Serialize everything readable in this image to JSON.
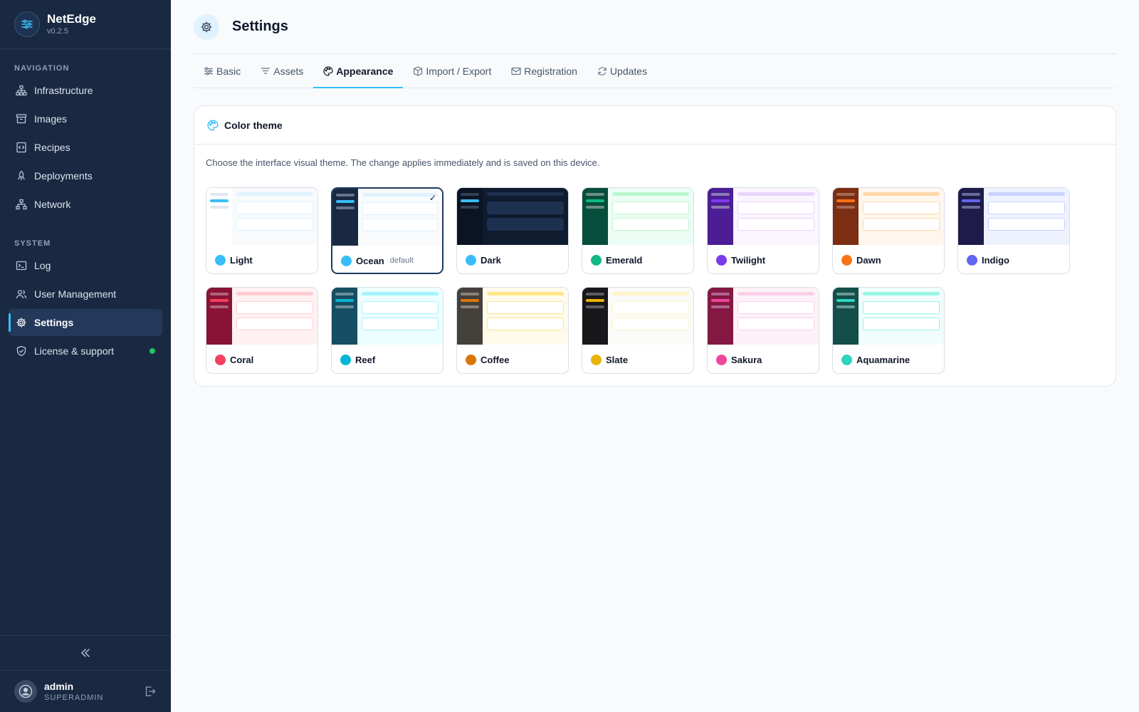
{
  "app": {
    "name": "NetEdge",
    "version": "v0.2.5"
  },
  "sidebar": {
    "navigation_label": "NAVIGATION",
    "system_label": "SYSTEM",
    "nav_items": [
      {
        "label": "Infrastructure",
        "icon": "hierarchy-icon"
      },
      {
        "label": "Images",
        "icon": "archive-box-icon"
      },
      {
        "label": "Recipes",
        "icon": "code-file-icon"
      },
      {
        "label": "Deployments",
        "icon": "rocket-icon"
      },
      {
        "label": "Network",
        "icon": "network-icon"
      }
    ],
    "system_items": [
      {
        "label": "Log",
        "icon": "terminal-icon"
      },
      {
        "label": "User Management",
        "icon": "users-icon"
      },
      {
        "label": "Settings",
        "icon": "gear-icon",
        "active": true
      },
      {
        "label": "License & support",
        "icon": "shield-icon",
        "status": "online"
      }
    ],
    "user": {
      "name": "admin",
      "role": "SUPERADMIN"
    }
  },
  "header": {
    "title": "Settings"
  },
  "tabs": [
    {
      "label": "Basic",
      "icon": "sliders-icon"
    },
    {
      "label": "Assets",
      "icon": "filter-icon"
    },
    {
      "label": "Appearance",
      "icon": "palette-icon",
      "active": true
    },
    {
      "label": "Import / Export",
      "icon": "package-icon"
    },
    {
      "label": "Registration",
      "icon": "mail-icon"
    },
    {
      "label": "Updates",
      "icon": "refresh-icon"
    }
  ],
  "appearance": {
    "card_title": "Color theme",
    "description": "Choose the interface visual theme. The change applies immediately and is saved on this device.",
    "default_tag": "default",
    "themes": [
      {
        "name": "Light",
        "accent": "#38bdf8",
        "sidebar": "#ffffff",
        "bg": "#f8fafc",
        "bar": "#e0f2fe",
        "muted": "#e2e8f0"
      },
      {
        "name": "Ocean",
        "accent": "#38bdf8",
        "sidebar": "#1a2942",
        "bg": "#f8fafc",
        "bar": "#e0f2fe",
        "muted": "#64748b",
        "selected": true,
        "default": true
      },
      {
        "name": "Dark",
        "accent": "#38bdf8",
        "sidebar": "#0b1424",
        "bg": "#0f1b2e",
        "bar": "#1e3050",
        "muted": "#334155",
        "dark": true
      },
      {
        "name": "Emerald",
        "accent": "#10b981",
        "sidebar": "#064e3b",
        "bg": "#ecfdf5",
        "bar": "#bbf7d0",
        "muted": "#6b8f83"
      },
      {
        "name": "Twilight",
        "accent": "#7c3aed",
        "sidebar": "#4c1d95",
        "bg": "#faf5ff",
        "bar": "#e9d5ff",
        "muted": "#8b7bb5"
      },
      {
        "name": "Dawn",
        "accent": "#f97316",
        "sidebar": "#7c2d12",
        "bg": "#fff7ed",
        "bar": "#fed7aa",
        "muted": "#a16a55"
      },
      {
        "name": "Indigo",
        "accent": "#6366f1",
        "sidebar": "#1e1b4b",
        "bg": "#eef2ff",
        "bar": "#c7d2fe",
        "muted": "#6b6a98"
      },
      {
        "name": "Coral",
        "accent": "#f43f5e",
        "sidebar": "#881337",
        "bg": "#fff1f2",
        "bar": "#fecdd3",
        "muted": "#b06478"
      },
      {
        "name": "Reef",
        "accent": "#06b6d4",
        "sidebar": "#164e63",
        "bg": "#ecfeff",
        "bar": "#a5f3fc",
        "muted": "#6a8e9a"
      },
      {
        "name": "Coffee",
        "accent": "#d97706",
        "sidebar": "#44403c",
        "bg": "#fffbeb",
        "bar": "#fde68a",
        "muted": "#8a8278"
      },
      {
        "name": "Slate",
        "accent": "#eab308",
        "sidebar": "#18181b",
        "bg": "#fafaf9",
        "bar": "#fef3c7",
        "muted": "#5c5c62"
      },
      {
        "name": "Sakura",
        "accent": "#ec4899",
        "sidebar": "#831843",
        "bg": "#fdf2f8",
        "bar": "#fbcfe8",
        "muted": "#b06490"
      },
      {
        "name": "Aquamarine",
        "accent": "#2dd4bf",
        "sidebar": "#134e4a",
        "bg": "#f0fdfa",
        "bar": "#99f6e4",
        "muted": "#6b9a93"
      }
    ]
  }
}
